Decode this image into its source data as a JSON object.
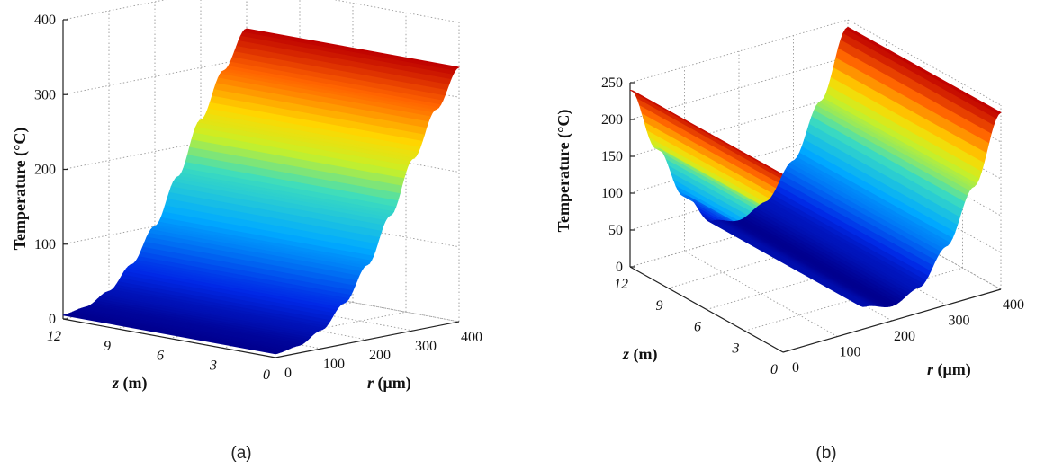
{
  "chart_data": [
    {
      "type": "surface",
      "panel_label": "(a)",
      "zlabel": "Temperature (°C)",
      "xlabel_var": "z",
      "xlabel_unit": " (m)",
      "ylabel_var": "r",
      "ylabel_unit": " (μm)",
      "z_ticks": [
        "0",
        "100",
        "200",
        "300",
        "400"
      ],
      "zlim": [
        0,
        400
      ],
      "x_ticks": [
        "12",
        "9",
        "6",
        "3",
        "0"
      ],
      "y_ticks": [
        "0",
        "100",
        "200",
        "300",
        "400"
      ],
      "xlim": [
        0,
        12
      ],
      "ylim": [
        0,
        400
      ],
      "grid": true,
      "r": [
        0,
        50,
        100,
        150,
        200,
        250,
        300,
        350,
        400
      ],
      "temperature": [
        5,
        10,
        25,
        55,
        100,
        160,
        230,
        290,
        340
      ]
    },
    {
      "type": "surface",
      "panel_label": "(b)",
      "zlabel": "Temperature (°C)",
      "xlabel_var": "z",
      "xlabel_unit": " (m)",
      "ylabel_var": "r",
      "ylabel_unit": " (μm)",
      "z_ticks": [
        "0",
        "50",
        "100",
        "150",
        "200",
        "250"
      ],
      "zlim": [
        0,
        250
      ],
      "x_ticks": [
        "12",
        "9",
        "6",
        "3",
        "0"
      ],
      "y_ticks": [
        "0",
        "100",
        "200",
        "300",
        "400"
      ],
      "xlim": [
        0,
        12
      ],
      "ylim": [
        0,
        400
      ],
      "grid": true,
      "r": [
        0,
        50,
        100,
        150,
        200,
        250,
        300,
        350,
        400
      ],
      "temperature": [
        240,
        150,
        75,
        30,
        20,
        35,
        80,
        150,
        240
      ]
    }
  ]
}
